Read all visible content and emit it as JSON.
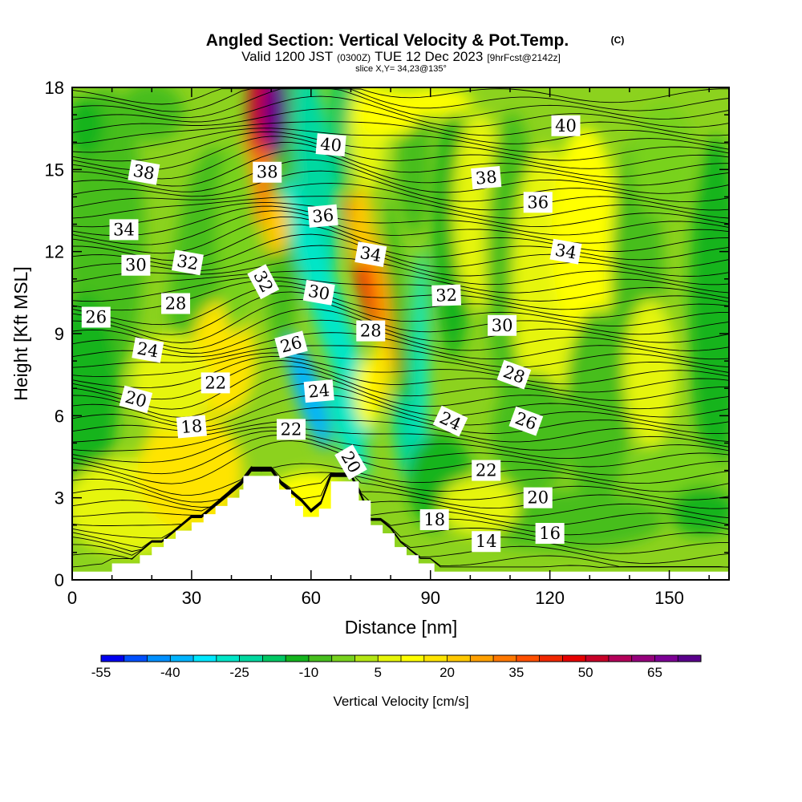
{
  "chart_data": {
    "type": "heatmap",
    "title": "Angled Section: Vertical Velocity & Pot.Temp.",
    "title_mark": "(C)",
    "subtitle_main_a": "Valid 1200 JST",
    "subtitle_small_a": "(0300Z)",
    "subtitle_main_b": "TUE 12 Dec 2023",
    "subtitle_small_b": "[9hrFcst@2142z]",
    "slice_label": "slice X,Y= 34,23@135°",
    "xlabel": "Distance [nm]",
    "ylabel": "Height [Kft MSL]",
    "xlim": [
      0,
      165
    ],
    "ylim": [
      0,
      18
    ],
    "x_ticks": [
      0,
      30,
      60,
      90,
      120,
      150
    ],
    "y_ticks": [
      0,
      3,
      6,
      9,
      12,
      15,
      18
    ],
    "colorbar": {
      "label": "Vertical Velocity [cm/s]",
      "min": -55,
      "max": 75,
      "step": 5,
      "tick_labels": [
        "-55",
        "-40",
        "-25",
        "-10",
        "5",
        "20",
        "35",
        "50",
        "65"
      ],
      "tick_values": [
        -55,
        -40,
        -25,
        -10,
        5,
        20,
        35,
        50,
        65
      ],
      "colors": [
        "#0000f0",
        "#0050ff",
        "#0090ff",
        "#00b4ff",
        "#00e8ff",
        "#00e6c8",
        "#00d8a0",
        "#00c864",
        "#14b41e",
        "#46be1e",
        "#78d21e",
        "#b4e614",
        "#e6f50a",
        "#ffff00",
        "#ffe400",
        "#ffc800",
        "#ffa000",
        "#ff7800",
        "#ff5000",
        "#f02800",
        "#e60000",
        "#c80028",
        "#b4005a",
        "#96007d",
        "#7d0096",
        "#5a008c"
      ]
    },
    "terrain_profile": [
      [
        0,
        0.3
      ],
      [
        10,
        0.3
      ],
      [
        10,
        0.6
      ],
      [
        17,
        0.6
      ],
      [
        17,
        0.9
      ],
      [
        20,
        0.9
      ],
      [
        20,
        1.2
      ],
      [
        23,
        1.2
      ],
      [
        23,
        1.5
      ],
      [
        26,
        1.5
      ],
      [
        26,
        1.8
      ],
      [
        30,
        1.8
      ],
      [
        30,
        2.1
      ],
      [
        33,
        2.1
      ],
      [
        33,
        2.4
      ],
      [
        36,
        2.4
      ],
      [
        36,
        2.7
      ],
      [
        39,
        2.7
      ],
      [
        39,
        3.0
      ],
      [
        42,
        3.0
      ],
      [
        42,
        3.3
      ],
      [
        43,
        3.3
      ],
      [
        43,
        3.8
      ],
      [
        52,
        3.8
      ],
      [
        52,
        3.3
      ],
      [
        55,
        3.3
      ],
      [
        55,
        3.0
      ],
      [
        56,
        3.0
      ],
      [
        56,
        2.7
      ],
      [
        58,
        2.7
      ],
      [
        58,
        2.3
      ],
      [
        62,
        2.3
      ],
      [
        62,
        2.6
      ],
      [
        65,
        2.6
      ],
      [
        65,
        3.6
      ],
      [
        72,
        3.6
      ],
      [
        72,
        2.9
      ],
      [
        75,
        2.9
      ],
      [
        75,
        2.0
      ],
      [
        78,
        2.0
      ],
      [
        78,
        1.7
      ],
      [
        81,
        1.7
      ],
      [
        81,
        1.2
      ],
      [
        84,
        1.2
      ],
      [
        84,
        0.9
      ],
      [
        87,
        0.9
      ],
      [
        87,
        0.6
      ],
      [
        91,
        0.6
      ],
      [
        91,
        0.3
      ],
      [
        165,
        0.3
      ]
    ],
    "contour_labels": [
      {
        "text": "40",
        "x": 65,
        "y": 15.9,
        "angle": 5
      },
      {
        "text": "40",
        "x": 124,
        "y": 16.6,
        "angle": 0
      },
      {
        "text": "38",
        "x": 18,
        "y": 14.9,
        "angle": 10
      },
      {
        "text": "38",
        "x": 49,
        "y": 14.9,
        "angle": 0
      },
      {
        "text": "38",
        "x": 104,
        "y": 14.7,
        "angle": -5
      },
      {
        "text": "36",
        "x": 63,
        "y": 13.3,
        "angle": -5
      },
      {
        "text": "36",
        "x": 117,
        "y": 13.8,
        "angle": 0
      },
      {
        "text": "34",
        "x": 13,
        "y": 12.8,
        "angle": 0
      },
      {
        "text": "34",
        "x": 75,
        "y": 11.9,
        "angle": 10
      },
      {
        "text": "34",
        "x": 124,
        "y": 12.0,
        "angle": 10
      },
      {
        "text": "32",
        "x": 29,
        "y": 11.6,
        "angle": 10
      },
      {
        "text": "32",
        "x": 48,
        "y": 10.9,
        "angle": 62
      },
      {
        "text": "32",
        "x": 94,
        "y": 10.4,
        "angle": -2
      },
      {
        "text": "30",
        "x": 16,
        "y": 11.5,
        "angle": 0
      },
      {
        "text": "30",
        "x": 62,
        "y": 10.5,
        "angle": 10
      },
      {
        "text": "30",
        "x": 108,
        "y": 9.3,
        "angle": 0
      },
      {
        "text": "28",
        "x": 26,
        "y": 10.1,
        "angle": 0
      },
      {
        "text": "28",
        "x": 75,
        "y": 9.1,
        "angle": 0
      },
      {
        "text": "28",
        "x": 111,
        "y": 7.5,
        "angle": 20
      },
      {
        "text": "26",
        "x": 6,
        "y": 9.6,
        "angle": 0
      },
      {
        "text": "26",
        "x": 55,
        "y": 8.6,
        "angle": -15
      },
      {
        "text": "26",
        "x": 114,
        "y": 5.8,
        "angle": 20
      },
      {
        "text": "24",
        "x": 19,
        "y": 8.4,
        "angle": 10
      },
      {
        "text": "24",
        "x": 62,
        "y": 6.9,
        "angle": -5
      },
      {
        "text": "24",
        "x": 95,
        "y": 5.8,
        "angle": 25
      },
      {
        "text": "22",
        "x": 36,
        "y": 7.2,
        "angle": 0
      },
      {
        "text": "22",
        "x": 55,
        "y": 5.5,
        "angle": 0
      },
      {
        "text": "22",
        "x": 104,
        "y": 4.0,
        "angle": 0
      },
      {
        "text": "20",
        "x": 16,
        "y": 6.6,
        "angle": 15
      },
      {
        "text": "20",
        "x": 70,
        "y": 4.3,
        "angle": 60
      },
      {
        "text": "20",
        "x": 117,
        "y": 3.0,
        "angle": 0
      },
      {
        "text": "18",
        "x": 30,
        "y": 5.6,
        "angle": -5
      },
      {
        "text": "18",
        "x": 91,
        "y": 2.2,
        "angle": 0
      },
      {
        "text": "16",
        "x": 120,
        "y": 1.7,
        "angle": 0
      },
      {
        "text": "14",
        "x": 104,
        "y": 1.4,
        "angle": 0
      }
    ]
  }
}
